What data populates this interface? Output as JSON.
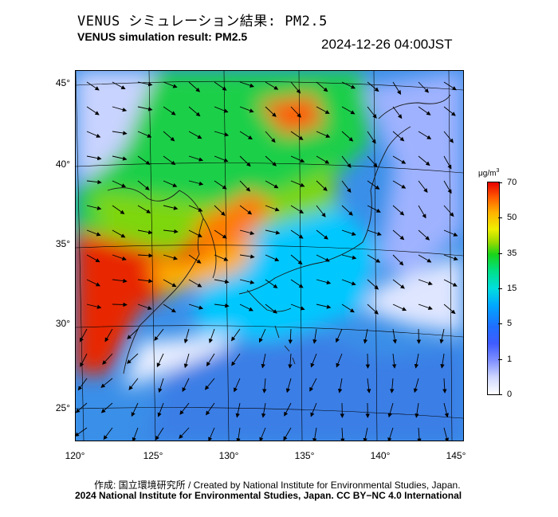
{
  "header": {
    "title_jp": "VENUS シミュレーション結果: PM2.5",
    "title_en": "VENUS simulation result: PM2.5",
    "timestamp": "2024-12-26 04:00JST"
  },
  "map": {
    "latitude_labels": [
      "45°",
      "40°",
      "35°",
      "30°",
      "25°"
    ],
    "longitude_labels": [
      "120°",
      "125°",
      "130°",
      "135°",
      "140°",
      "145°"
    ],
    "colors": {
      "ocean_base": "#3a8fe8",
      "high": "#e60000",
      "mid_high": "#ff8c00",
      "mid": "#19d419",
      "low": "#00c8ff",
      "clean": "#dfe6ff"
    }
  },
  "colorbar": {
    "unit": "μg/m",
    "unit_sup": "3",
    "labels": [
      "70",
      "50",
      "35",
      "15",
      "5",
      "1",
      "0"
    ]
  },
  "footer": {
    "credit_line_1": "作成: 国立環境研究所 / Created by National Institute for Environmental Studies, Japan.",
    "credit_line_2": "2024 National Institute for Environmental Studies, Japan. CC BY−NC 4.0 International"
  }
}
